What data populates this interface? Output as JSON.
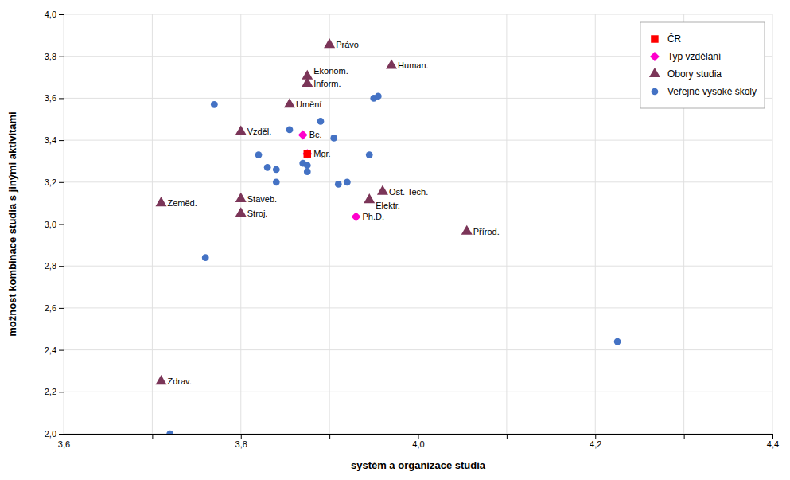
{
  "chart_data": {
    "type": "scatter",
    "xlabel": "systém a organizace studia",
    "ylabel": "možnost kombinace studia s jinými aktivitami",
    "xlim": [
      3.6,
      4.4
    ],
    "ylim": [
      2.0,
      4.0
    ],
    "xticks": [
      {
        "value": 3.6,
        "label": "3,6"
      },
      {
        "value": 3.7,
        "label": null
      },
      {
        "value": 3.8,
        "label": "3,8"
      },
      {
        "value": 3.9,
        "label": null
      },
      {
        "value": 4.0,
        "label": "4,0"
      },
      {
        "value": 4.1,
        "label": null
      },
      {
        "value": 4.2,
        "label": "4,2"
      },
      {
        "value": 4.3,
        "label": null
      },
      {
        "value": 4.4,
        "label": "4,4"
      }
    ],
    "yticks": [
      {
        "value": 2.0,
        "label": "2,0"
      },
      {
        "value": 2.2,
        "label": "2,2"
      },
      {
        "value": 2.4,
        "label": "2,4"
      },
      {
        "value": 2.6,
        "label": "2,6"
      },
      {
        "value": 2.8,
        "label": "2,8"
      },
      {
        "value": 3.0,
        "label": "3,0"
      },
      {
        "value": 3.2,
        "label": "3,2"
      },
      {
        "value": 3.4,
        "label": "3,4"
      },
      {
        "value": 3.6,
        "label": "3,6"
      },
      {
        "value": 3.8,
        "label": "3,8"
      },
      {
        "value": 4.0,
        "label": "4,0"
      }
    ],
    "grid": true,
    "legend": "upper right",
    "series": [
      {
        "name": "ČR",
        "color": "#FF0000",
        "marker": "square",
        "x": [
          3.875
        ],
        "values": [
          3.335
        ]
      },
      {
        "name": "Typ vzdělání",
        "color": "#FF00CC",
        "marker": "diamond",
        "x": [
          3.87,
          3.875,
          3.93
        ],
        "values": [
          3.425,
          3.335,
          3.035
        ],
        "labels": [
          "Bc.",
          "Mgr.",
          "Ph.D."
        ]
      },
      {
        "name": "Obory studia",
        "color": "#7B3558",
        "marker": "triangle",
        "x": [
          3.71,
          3.71,
          3.8,
          3.8,
          3.8,
          3.855,
          3.875,
          3.875,
          3.9,
          3.96,
          3.945,
          4.055,
          3.97
        ],
        "values": [
          3.1,
          2.25,
          3.05,
          3.12,
          3.44,
          3.57,
          3.67,
          3.705,
          3.855,
          3.155,
          3.115,
          2.965,
          3.755
        ],
        "labels": [
          "Zeměd.",
          "Zdrav.",
          "Stroj.",
          "Staveb.",
          "Vzděl.",
          "Umění",
          "Inform.",
          "Ekonom.",
          "Právo",
          "Ost. Tech.",
          "Elektr.",
          "Přírod.",
          "Human."
        ]
      },
      {
        "name": "Veřejné vysoké školy",
        "color": "#4472C4",
        "marker": "circle",
        "x": [
          3.72,
          3.76,
          3.77,
          3.82,
          3.83,
          3.84,
          3.84,
          3.855,
          3.87,
          3.875,
          3.875,
          3.89,
          3.905,
          3.91,
          3.92,
          3.945,
          3.95,
          3.955,
          4.225
        ],
        "values": [
          2.0,
          2.84,
          3.57,
          3.33,
          3.27,
          3.26,
          3.2,
          3.45,
          3.29,
          3.28,
          3.25,
          3.49,
          3.41,
          3.19,
          3.2,
          3.33,
          3.6,
          3.61,
          2.44
        ]
      }
    ]
  }
}
